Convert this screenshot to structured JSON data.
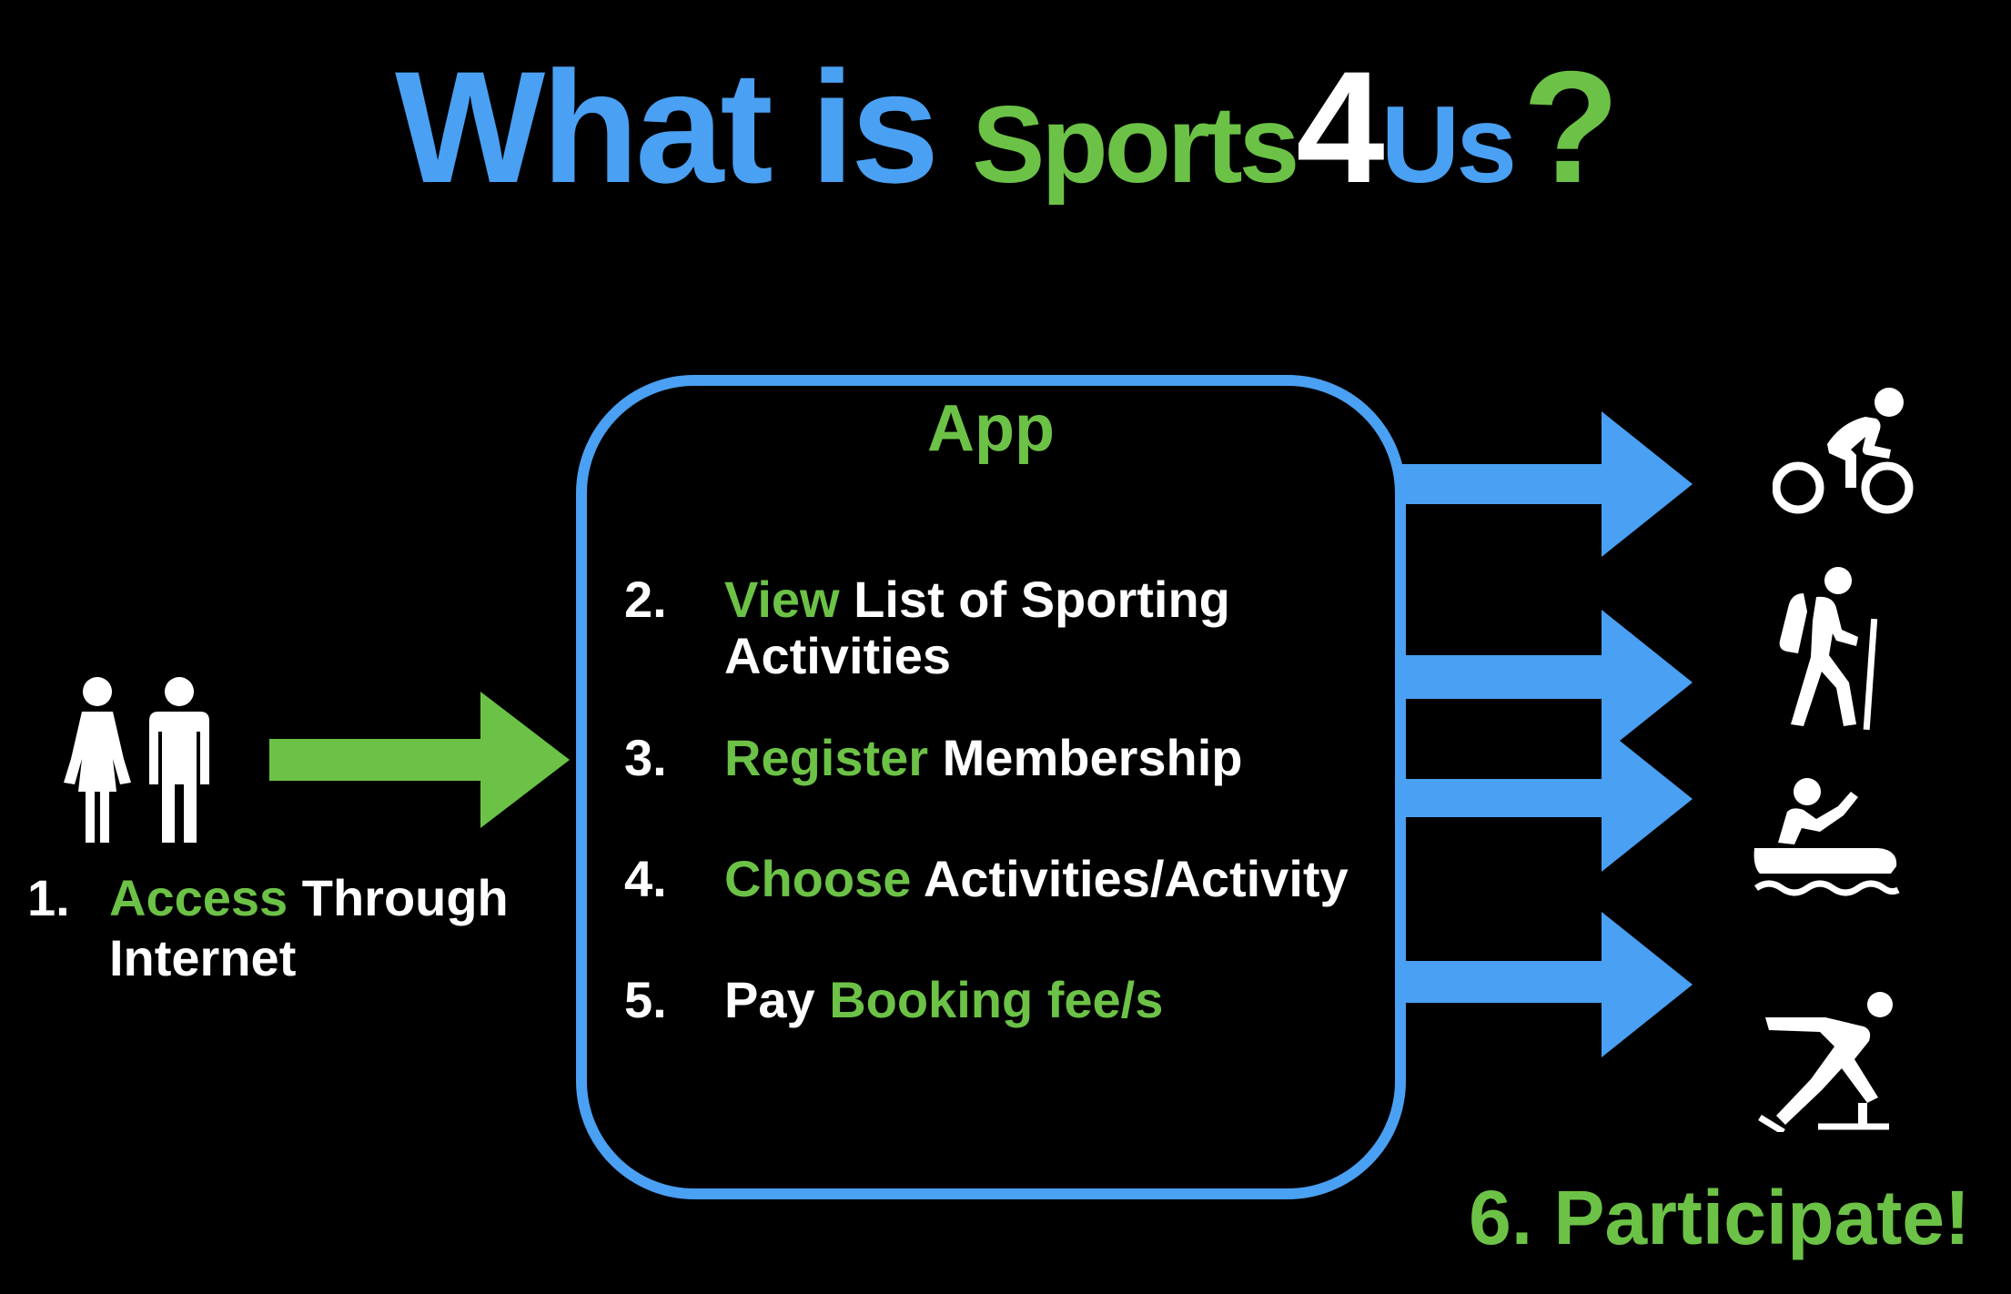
{
  "title": {
    "part1": "What is",
    "part2": "Sports",
    "part3": "4",
    "part4": "Us",
    "part5": "?"
  },
  "colors": {
    "blue": "#4aa0f2",
    "green": "#6cc246",
    "white": "#ffffff",
    "background": "#000000"
  },
  "app": {
    "label": "App",
    "steps": [
      {
        "num": "2.",
        "highlight": "View",
        "text": " List of Sporting",
        "text2": "Activities"
      },
      {
        "num": "3.",
        "highlight": "Register",
        "text": " Membership"
      },
      {
        "num": "4.",
        "highlight": "Choose",
        "text": " Activities/Activity"
      },
      {
        "num": "5.",
        "text": "Pay ",
        "highlight": "Booking fee/s"
      }
    ]
  },
  "step1": {
    "num": "1.",
    "highlight": "Access",
    "text": " Through",
    "text2": "Internet"
  },
  "step6": {
    "text": "6.  Participate!"
  },
  "icons": [
    "restroom-people-icon",
    "cycling-icon",
    "hiking-icon",
    "canoeing-icon",
    "ice-skating-icon"
  ]
}
